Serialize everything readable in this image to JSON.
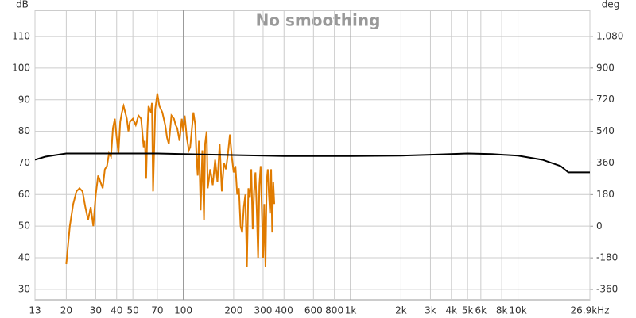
{
  "chart_data": {
    "type": "line",
    "title": "No smoothing",
    "y_label": "dB",
    "y2_label": "deg",
    "log_x": true,
    "grid": true,
    "xlim": [
      13,
      26900
    ],
    "xticks": [
      13,
      20,
      30,
      40,
      50,
      70,
      100,
      200,
      300,
      400,
      600,
      800,
      {
        "value": 1000,
        "label": "1k"
      },
      {
        "value": 2000,
        "label": "2k"
      },
      {
        "value": 3000,
        "label": "3k"
      },
      {
        "value": 4000,
        "label": "4k"
      },
      {
        "value": 5000,
        "label": "5k"
      },
      {
        "value": 6000,
        "label": "6k"
      },
      {
        "value": 8000,
        "label": "8k"
      },
      {
        "value": 10000,
        "label": "10k"
      },
      {
        "value": 26900,
        "label": "26.9kHz"
      }
    ],
    "ylim": [
      26.7,
      118.3
    ],
    "yticks": [
      30,
      40,
      50,
      60,
      70,
      80,
      90,
      100,
      110
    ],
    "y2lim": [
      -418.5,
      1228.5
    ],
    "y2ticks": [
      -360,
      -180,
      0,
      180,
      360,
      540,
      720,
      900,
      {
        "value": 1080,
        "label": "1,080"
      }
    ],
    "series": [
      {
        "color": "#e07b00",
        "x": [
          20,
          21,
          22,
          23,
          24,
          25,
          26,
          27,
          28,
          29,
          30,
          31,
          32,
          33,
          34,
          35,
          36,
          37,
          38,
          39,
          40,
          41,
          42,
          43,
          44,
          46,
          47,
          48,
          50,
          52,
          54,
          56,
          58,
          59,
          60,
          61,
          62,
          64,
          65,
          66,
          68,
          70,
          72,
          75,
          78,
          80,
          82,
          85,
          88,
          90,
          92,
          95,
          98,
          100,
          102,
          105,
          108,
          110,
          115,
          118,
          120,
          122,
          124,
          127,
          130,
          133,
          135,
          138,
          140,
          145,
          150,
          155,
          160,
          165,
          170,
          175,
          180,
          185,
          190,
          195,
          200,
          205,
          210,
          215,
          220,
          225,
          230,
          235,
          240,
          245,
          250,
          255,
          260,
          265,
          270,
          275,
          280,
          285,
          290,
          295,
          300,
          305,
          310,
          315,
          320,
          325,
          330,
          335,
          340,
          345,
          350
        ],
        "values": [
          38,
          50,
          57,
          61,
          62,
          61,
          56,
          52,
          56,
          50,
          60,
          66,
          64,
          62,
          68,
          69,
          73,
          72,
          81,
          84,
          78,
          73,
          83,
          86,
          88,
          84,
          80,
          83,
          84,
          82,
          85,
          84,
          75,
          77,
          65,
          80,
          88,
          86,
          89,
          61,
          87,
          92,
          88,
          86,
          82,
          78,
          76,
          85,
          84,
          82,
          81,
          77,
          84,
          80,
          85,
          78,
          74,
          75,
          86,
          82,
          72,
          66,
          77,
          55,
          74,
          52,
          76,
          80,
          62,
          68,
          63,
          71,
          64,
          76,
          61,
          70,
          68,
          73,
          79,
          72,
          67,
          69,
          60,
          62,
          50,
          48,
          56,
          60,
          37,
          62,
          59,
          68,
          49,
          61,
          67,
          55,
          40,
          63,
          69,
          55,
          40,
          57,
          37,
          64,
          68,
          60,
          54,
          68,
          48,
          64,
          57
        ]
      },
      {
        "color": "#000000",
        "x": [
          13,
          15,
          20,
          30,
          50,
          70,
          100,
          200,
          400,
          1000,
          2000,
          3000,
          5000,
          7000,
          10000,
          14000,
          18000,
          20000,
          26900
        ],
        "values": [
          71,
          72,
          73,
          73,
          73,
          73,
          72.8,
          72.5,
          72.2,
          72.2,
          72.3,
          72.6,
          73,
          72.8,
          72.3,
          71,
          69,
          67,
          67
        ]
      }
    ]
  }
}
